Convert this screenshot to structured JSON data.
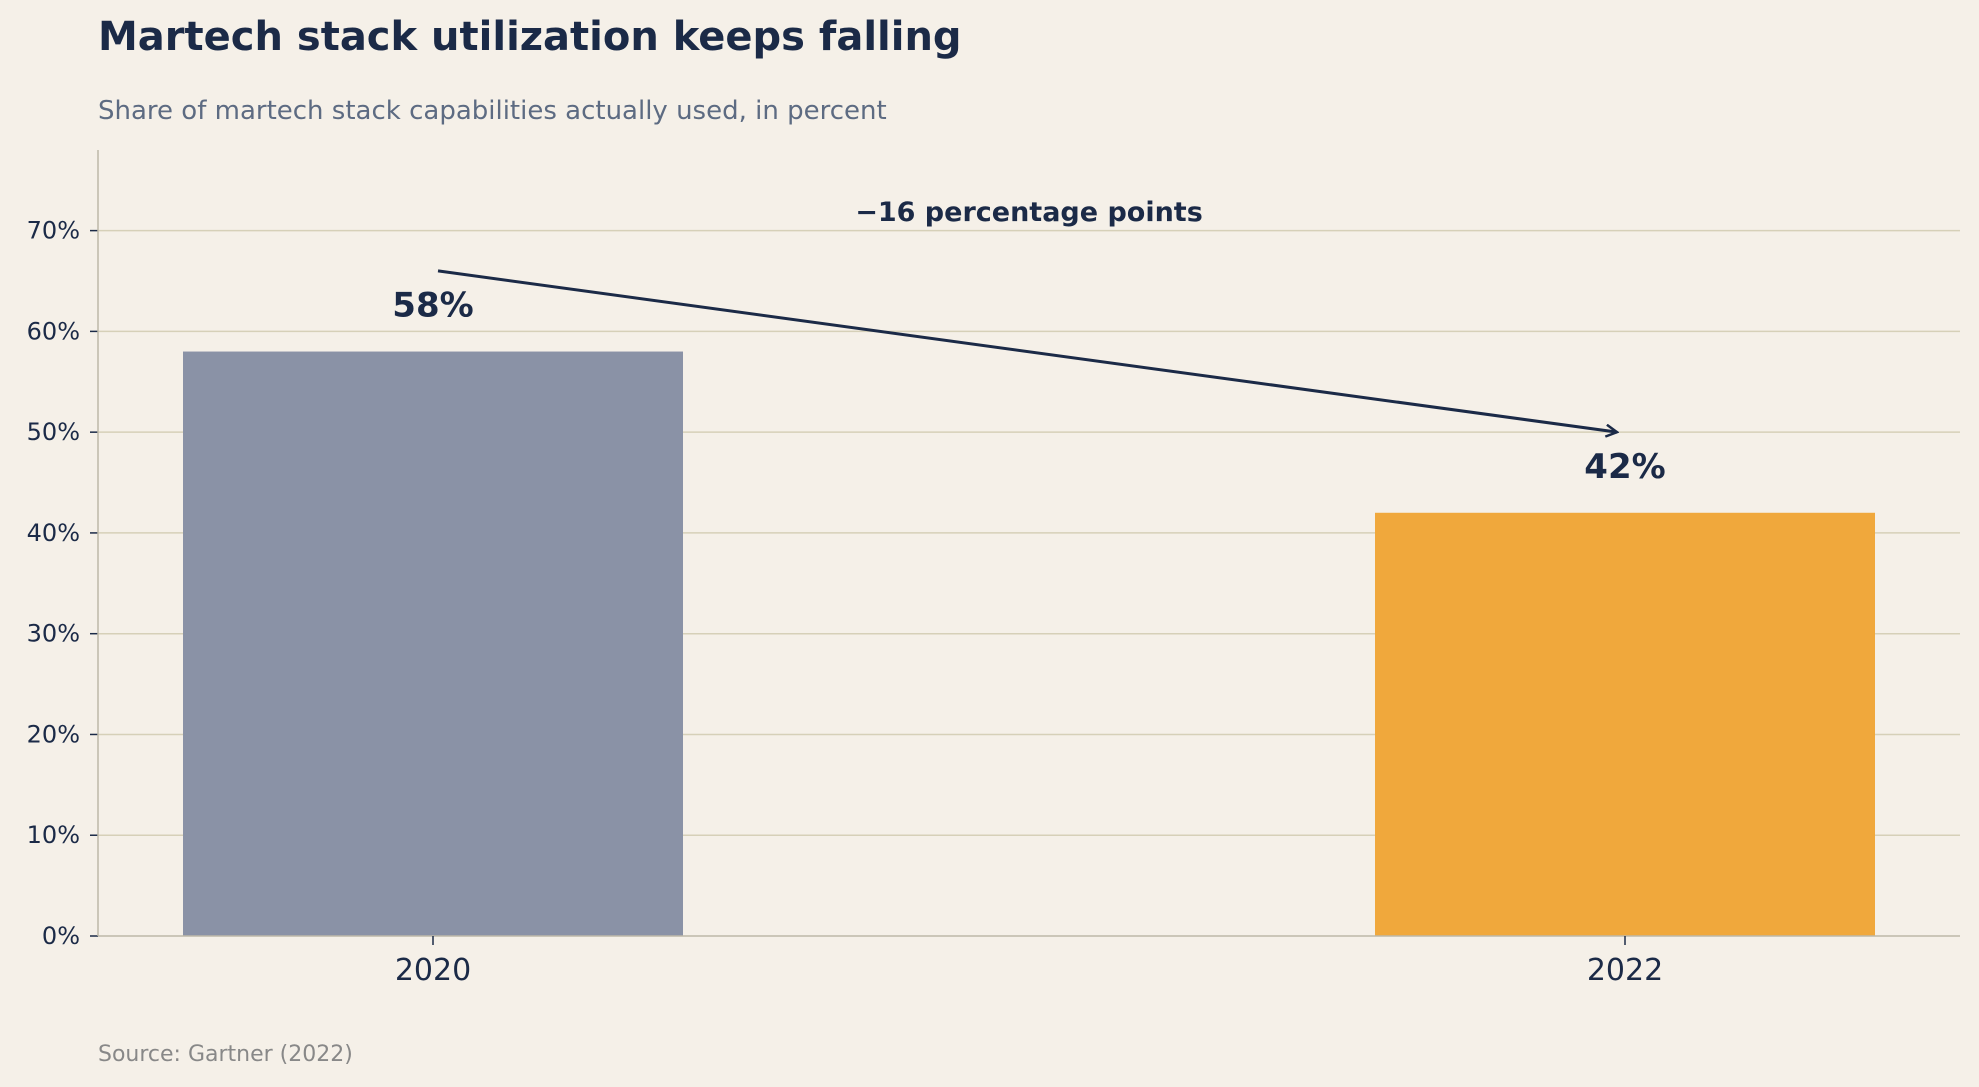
{
  "chart_data": {
    "type": "bar",
    "title": "Martech stack utilization keeps falling",
    "subtitle": "Share of martech stack capabilities actually used, in percent",
    "source": "Source: Gartner (2022)",
    "categories": [
      "2020",
      "2022"
    ],
    "values": [
      58,
      42
    ],
    "value_labels": [
      "58%",
      "42%"
    ],
    "bar_colors": [
      "#8a92a6",
      "#f0a83c"
    ],
    "ylim": [
      0,
      78
    ],
    "yticks": [
      0,
      10,
      20,
      30,
      40,
      50,
      60,
      70
    ],
    "ytick_labels": [
      "0%",
      "10%",
      "20%",
      "30%",
      "40%",
      "50%",
      "60%",
      "70%"
    ],
    "xlabel": "",
    "ylabel": "",
    "grid": true,
    "annotation": {
      "text": "−16 percentage points",
      "from": {
        "category": "2020",
        "value": 66
      },
      "to": {
        "category": "2022",
        "value": 50
      }
    }
  },
  "colors": {
    "background": "#f5f0e8",
    "text": "#1b2a47",
    "subtitle": "#5d6b82",
    "grid": "#d6d0b8"
  }
}
